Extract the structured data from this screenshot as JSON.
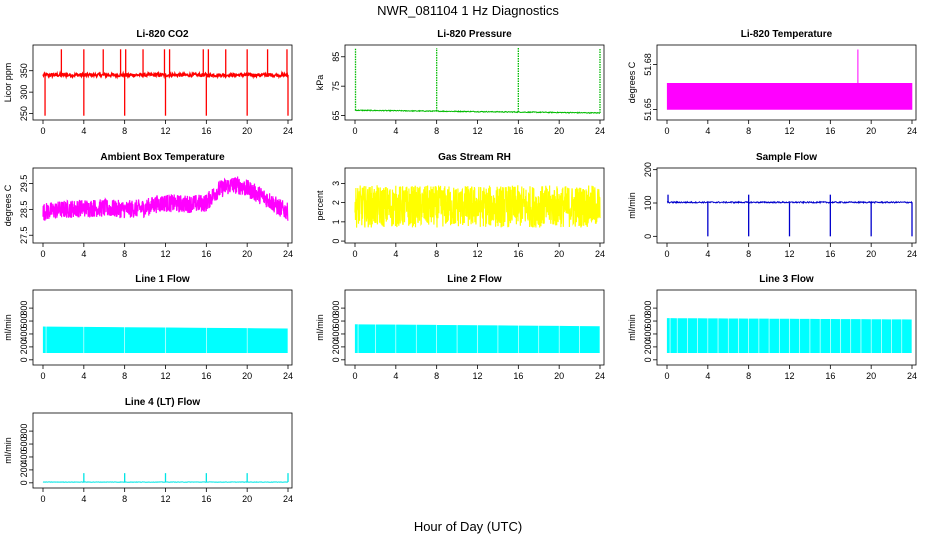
{
  "figure": {
    "title": "NWR_081104  1 Hz Diagnostics",
    "xlabel": "Hour of Day (UTC)"
  },
  "chart_data": [
    {
      "type": "line",
      "title": "Li-820 CO2",
      "ylabel": "Licor ppm",
      "color": "#ff0000",
      "xlim": [
        0,
        24
      ],
      "ylim": [
        235,
        410
      ],
      "xticks": [
        0,
        4,
        8,
        12,
        16,
        20,
        24
      ],
      "yticks": [
        250,
        300,
        350
      ],
      "baseline": 340,
      "noise": 4,
      "pattern": "co2",
      "spikes_up": [
        1.8,
        4.0,
        5.9,
        7.6,
        8.1,
        9.8,
        11.9,
        12.4,
        15.7,
        16.2,
        17.9,
        20.0,
        22.0,
        23.9
      ],
      "spikes_down": [
        0.2,
        4.0,
        8.0,
        12.0,
        16.0,
        20.0,
        24.0
      ],
      "spike_up_value": 400,
      "spike_down_value": 245
    },
    {
      "type": "line",
      "title": "Li-820 Pressure",
      "ylabel": "kPa",
      "color": "#00bb00",
      "xlim": [
        0,
        24
      ],
      "ylim": [
        63.5,
        89
      ],
      "xticks": [
        0,
        4,
        8,
        12,
        16,
        20,
        24
      ],
      "yticks": [
        65,
        75,
        85
      ],
      "baseline_start": 66.8,
      "baseline_end": 65.9,
      "noise": 0.15,
      "pattern": "pressure",
      "spikes_up": [
        0.05,
        8.0,
        16.0,
        24.0
      ],
      "spike_up_value": 88
    },
    {
      "type": "area",
      "title": "Li-820 Temperature",
      "ylabel": "degrees C",
      "color": "#ff00ff",
      "xlim": [
        0,
        24
      ],
      "ylim": [
        51.643,
        51.693
      ],
      "xticks": [
        0,
        4,
        8,
        12,
        16,
        20,
        24
      ],
      "yticks": [
        51.65,
        51.68
      ],
      "low": 51.65,
      "high": 51.6675,
      "pattern": "band",
      "spike_at": 18.7,
      "spike_value": 51.69
    },
    {
      "type": "line",
      "title": "Ambient Box Temperature",
      "ylabel": "degrees C",
      "color": "#ff00ff",
      "xlim": [
        0,
        24
      ],
      "ylim": [
        27.2,
        30.1
      ],
      "xticks": [
        0,
        4,
        8,
        12,
        16,
        20,
        24
      ],
      "yticks": [
        27.5,
        28.5,
        29.5
      ],
      "profile_x": [
        0,
        2,
        4,
        6,
        8,
        10,
        11,
        12,
        14,
        16,
        17,
        18,
        19,
        20,
        21,
        22,
        23,
        24
      ],
      "profile_y": [
        28.4,
        28.5,
        28.55,
        28.55,
        28.5,
        28.55,
        28.7,
        28.75,
        28.7,
        28.75,
        29.2,
        29.4,
        29.45,
        29.3,
        29.1,
        28.9,
        28.6,
        28.4
      ],
      "noise": 0.35,
      "pattern": "noisy"
    },
    {
      "type": "area",
      "title": "Gas Stream RH",
      "ylabel": "percent",
      "color": "#ffff00",
      "xlim": [
        0,
        24
      ],
      "ylim": [
        -0.1,
        3.8
      ],
      "xticks": [
        0,
        4,
        8,
        12,
        16,
        20,
        24
      ],
      "yticks": [
        0.0,
        1.0,
        2.0,
        3.0
      ],
      "center": 1.8,
      "noise": 1.1,
      "pattern": "noisy"
    },
    {
      "type": "line",
      "title": "Sample Flow",
      "ylabel": "ml/min",
      "color": "#0000cc",
      "xlim": [
        0,
        24
      ],
      "ylim": [
        -20,
        205
      ],
      "xticks": [
        0,
        4,
        8,
        12,
        16,
        20,
        24
      ],
      "yticks": [
        0,
        100,
        200
      ],
      "baseline": 102,
      "noise": 2,
      "pattern": "flow",
      "dips": [
        4.0,
        8.0,
        12.0,
        16.0,
        20.0,
        24.0
      ],
      "dip_value": 0,
      "spikes_up": [
        0.1,
        8.0,
        16.0
      ],
      "spike_up_value": 125
    },
    {
      "type": "area",
      "title": "Line 1 Flow",
      "ylabel": "ml/min",
      "color": "#00ffff",
      "xlim": [
        0,
        24
      ],
      "ylim": [
        -80,
        1080
      ],
      "xticks": [
        0,
        4,
        8,
        12,
        16,
        20,
        24
      ],
      "yticks": [
        0,
        200,
        400,
        600,
        800
      ],
      "low": 110,
      "high_start": 510,
      "high_end": 480,
      "gaps": [
        0.3,
        4.0,
        8.0,
        12.0,
        16.0,
        20.0,
        24.0
      ],
      "pattern": "band"
    },
    {
      "type": "area",
      "title": "Line 2 Flow",
      "ylabel": "ml/min",
      "color": "#00ffff",
      "xlim": [
        0,
        24
      ],
      "ylim": [
        -80,
        1080
      ],
      "xticks": [
        0,
        4,
        8,
        12,
        16,
        20,
        24
      ],
      "yticks": [
        0,
        200,
        400,
        600,
        800
      ],
      "low": 110,
      "high_start": 545,
      "high_end": 515,
      "gaps": [
        0.3,
        2.0,
        4.0,
        6.0,
        8.0,
        10.0,
        12.0,
        14.0,
        16.0,
        18.0,
        20.0,
        22.0,
        24.0
      ],
      "pattern": "band"
    },
    {
      "type": "area",
      "title": "Line 3 Flow",
      "ylabel": "ml/min",
      "color": "#00ffff",
      "xlim": [
        0,
        24
      ],
      "ylim": [
        -80,
        1080
      ],
      "xticks": [
        0,
        4,
        8,
        12,
        16,
        20,
        24
      ],
      "yticks": [
        0,
        200,
        400,
        600,
        800
      ],
      "low": 110,
      "high_start": 640,
      "high_end": 620,
      "gaps": [
        0.3,
        1.0,
        2.0,
        3.0,
        4.0,
        5.0,
        6.0,
        7.0,
        8.0,
        9.0,
        10.0,
        11.0,
        12.0,
        13.0,
        14.0,
        15.0,
        16.0,
        17.0,
        18.0,
        19.0,
        20.0,
        21.0,
        22.0,
        23.0,
        24.0
      ],
      "pattern": "band"
    },
    {
      "type": "line",
      "title": "Line 4 (LT) Flow",
      "ylabel": "ml/min",
      "color": "#00e5e5",
      "xlim": [
        0,
        24
      ],
      "ylim": [
        -80,
        1080
      ],
      "xticks": [
        0,
        4,
        8,
        12,
        16,
        20,
        24
      ],
      "yticks": [
        0,
        200,
        400,
        600,
        800
      ],
      "baseline": 12,
      "noise": 3,
      "pattern": "flow",
      "spikes_up": [
        4.0,
        8.0,
        12.0,
        16.0,
        20.0,
        24.0
      ],
      "spike_up_value": 150,
      "dips": []
    }
  ]
}
